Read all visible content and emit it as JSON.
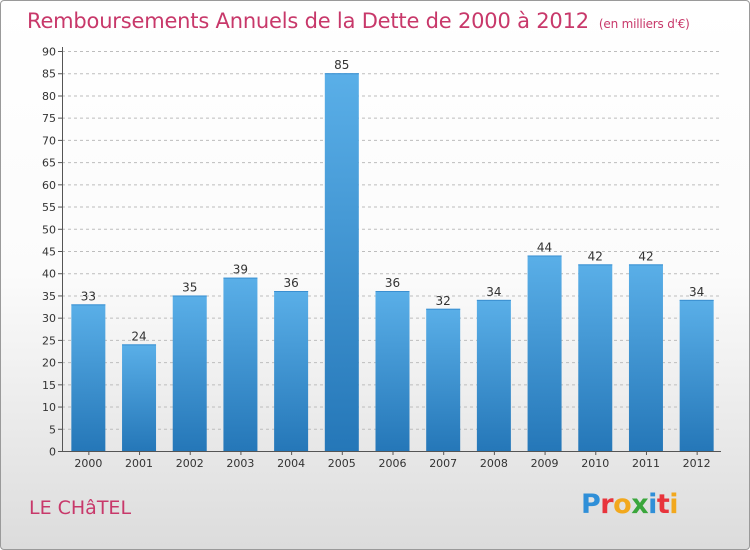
{
  "header": {
    "title": "Remboursements Annuels de la Dette de 2000 à 2012",
    "unit": "(en milliers d'€)"
  },
  "footer": {
    "commune": "LE CHâTEL",
    "logo_letters": [
      "P",
      "r",
      "o",
      "x",
      "i",
      "t",
      "i"
    ],
    "logo_colors": [
      "#2f8fd8",
      "#e8343c",
      "#f2a81d",
      "#3aa63c",
      "#2f8fd8",
      "#e8343c",
      "#f2a81d"
    ]
  },
  "colors": {
    "bar_top": "#5aafe8",
    "bar_bottom": "#2577b8",
    "grid": "#bdbdbd",
    "axis": "#555555"
  },
  "chart_data": {
    "type": "bar",
    "title": "Remboursements Annuels de la Dette de 2000 à 2012",
    "xlabel": "",
    "ylabel": "",
    "categories": [
      "2000",
      "2001",
      "2002",
      "2003",
      "2004",
      "2005",
      "2006",
      "2007",
      "2008",
      "2009",
      "2010",
      "2011",
      "2012"
    ],
    "values": [
      33,
      24,
      35,
      39,
      36,
      85,
      36,
      32,
      34,
      44,
      42,
      42,
      34
    ],
    "value_labels": [
      "33",
      "24",
      "35",
      "39",
      "36",
      "85",
      "36",
      "32",
      "34",
      "44",
      "42",
      "42",
      "34"
    ],
    "ylim": [
      0,
      90
    ],
    "ytick_step": 5,
    "grid": true
  }
}
